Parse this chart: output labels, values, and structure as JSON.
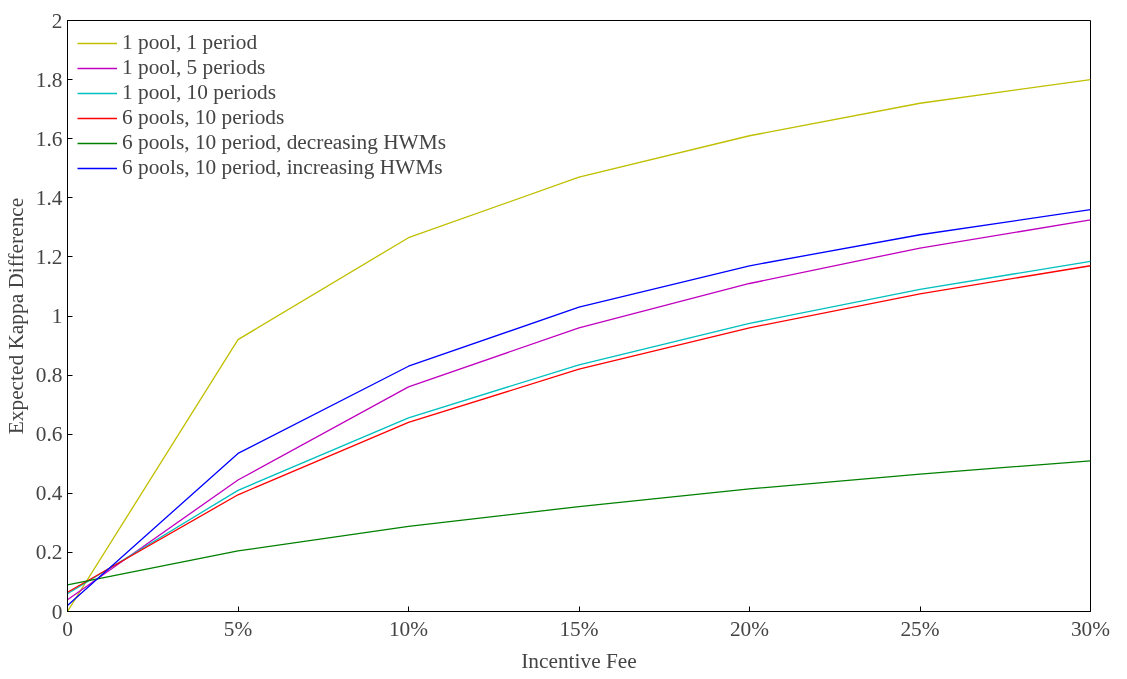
{
  "chart_data": {
    "type": "line",
    "xlabel": "Incentive Fee",
    "ylabel": "Expected Kappa Difference",
    "x": [
      0,
      5,
      10,
      15,
      20,
      25,
      30
    ],
    "xlim": [
      0,
      30
    ],
    "xticks": [
      0,
      {
        "value": 5,
        "label": "5%"
      },
      {
        "value": 10,
        "label": "10%"
      },
      {
        "value": 15,
        "label": "15%"
      },
      {
        "value": 20,
        "label": "20%"
      },
      {
        "value": 25,
        "label": "25%"
      },
      {
        "value": 30,
        "label": "30%"
      }
    ],
    "ylim": [
      0,
      2
    ],
    "yticks": [
      0,
      0.2,
      0.4,
      0.6,
      0.8,
      1,
      1.2,
      1.4,
      1.6,
      1.8,
      2
    ],
    "grid": false,
    "legend": "top left",
    "marker": "none",
    "line_style": "solid",
    "series": [
      {
        "name": "1 pool, 1 period",
        "color": "#bfbf00",
        "values": [
          0,
          0.92,
          1.265,
          1.47,
          1.61,
          1.72,
          1.8
        ]
      },
      {
        "name": "1 pool, 5 periods",
        "color": "#bf00bf",
        "values": [
          0.04,
          0.445,
          0.76,
          0.96,
          1.11,
          1.23,
          1.325
        ]
      },
      {
        "name": "1 pool, 10 periods",
        "color": "#00bfbf",
        "values": [
          0.06,
          0.41,
          0.655,
          0.835,
          0.975,
          1.09,
          1.185
        ]
      },
      {
        "name": "6 pools, 10 periods",
        "color": "#ff0000",
        "values": [
          0.065,
          0.395,
          0.64,
          0.82,
          0.96,
          1.075,
          1.17
        ]
      },
      {
        "name": "6 pools, 10 period, decreasing HWMs",
        "color": "#008000",
        "values": [
          0.09,
          0.205,
          0.288,
          0.355,
          0.415,
          0.465,
          0.51
        ]
      },
      {
        "name": "6 pools, 10 period, increasing HWMs",
        "color": "#0000ff",
        "values": [
          0.02,
          0.535,
          0.83,
          1.03,
          1.17,
          1.275,
          1.36
        ]
      }
    ]
  }
}
